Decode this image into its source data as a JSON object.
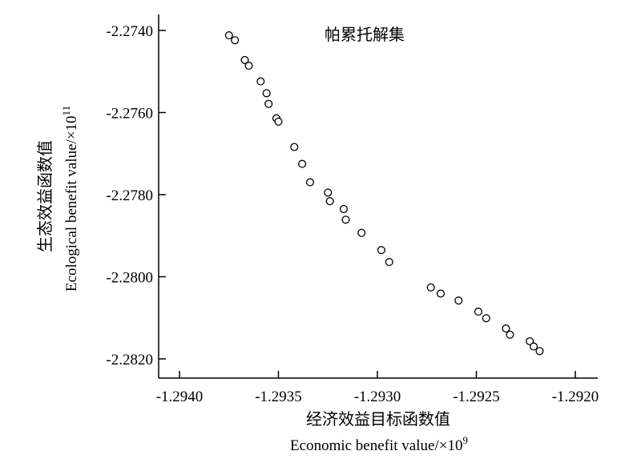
{
  "chart_data": {
    "type": "scatter",
    "legend_label": "帕累托解集",
    "xlabel_cn": "经济效益目标函数值",
    "xlabel_en": "Economic benefit value/×10",
    "xlabel_exp": "9",
    "ylabel_cn": "生态效益函数值",
    "ylabel_en": "Ecological benefit value/×10",
    "ylabel_exp": "11",
    "xlim": [
      -1.294,
      -1.292
    ],
    "ylim": [
      -2.2825,
      -2.2735
    ],
    "x_ticks": [
      -1.294,
      -1.2935,
      -1.293,
      -1.2925,
      -1.292
    ],
    "x_tick_labels": [
      "-1.2940",
      "-1.2935",
      "-1.2930",
      "-1.2925",
      "-1.2920"
    ],
    "y_ticks": [
      -2.274,
      -2.276,
      -2.278,
      -2.28,
      -2.282
    ],
    "y_tick_labels": [
      "-2.2740",
      "-2.2760",
      "-2.2780",
      "-2.2800",
      "-2.2820"
    ],
    "points": [
      {
        "x": -1.29375,
        "y": -2.27412
      },
      {
        "x": -1.29372,
        "y": -2.27424
      },
      {
        "x": -1.29367,
        "y": -2.27472
      },
      {
        "x": -1.29365,
        "y": -2.27486
      },
      {
        "x": -1.29359,
        "y": -2.27524
      },
      {
        "x": -1.29356,
        "y": -2.27553
      },
      {
        "x": -1.29355,
        "y": -2.27579
      },
      {
        "x": -1.29351,
        "y": -2.27614
      },
      {
        "x": -1.2935,
        "y": -2.27622
      },
      {
        "x": -1.29342,
        "y": -2.27684
      },
      {
        "x": -1.29338,
        "y": -2.27725
      },
      {
        "x": -1.29334,
        "y": -2.2777
      },
      {
        "x": -1.29325,
        "y": -2.27795
      },
      {
        "x": -1.29324,
        "y": -2.27816
      },
      {
        "x": -1.29317,
        "y": -2.27835
      },
      {
        "x": -1.29316,
        "y": -2.27861
      },
      {
        "x": -1.29308,
        "y": -2.27893
      },
      {
        "x": -1.29298,
        "y": -2.27935
      },
      {
        "x": -1.29294,
        "y": -2.27964
      },
      {
        "x": -1.29273,
        "y": -2.28026
      },
      {
        "x": -1.29268,
        "y": -2.28041
      },
      {
        "x": -1.29259,
        "y": -2.28058
      },
      {
        "x": -1.29249,
        "y": -2.28085
      },
      {
        "x": -1.29245,
        "y": -2.28101
      },
      {
        "x": -1.29235,
        "y": -2.28126
      },
      {
        "x": -1.29233,
        "y": -2.28141
      },
      {
        "x": -1.29223,
        "y": -2.28157
      },
      {
        "x": -1.29221,
        "y": -2.2817
      },
      {
        "x": -1.29218,
        "y": -2.28181
      }
    ]
  }
}
